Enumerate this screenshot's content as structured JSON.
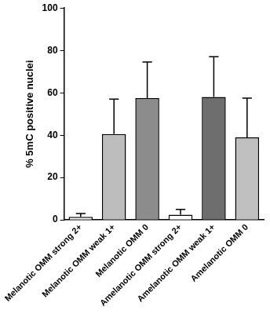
{
  "chart_data": {
    "type": "bar",
    "y_label": "% 5mC positive nuclei",
    "categories": [
      "Melanotic OMM strong 2+",
      "Melanotic OMM weak 1+",
      "Melanotic OMM 0",
      "Amelanotic OMM strong 2+",
      "Amelanotic OMM weak 1+",
      "Amelanotic OMM 0"
    ],
    "values": [
      1.5,
      40.5,
      57.5,
      2.5,
      58,
      39
    ],
    "errors": [
      1.5,
      16.5,
      17,
      2.5,
      19,
      18.5
    ],
    "colors": [
      "#ffffff",
      "#bdbdbd",
      "#8c8c8c",
      "#ffffff",
      "#6e6e6e",
      "#c0c0c0"
    ],
    "ylim": [
      0,
      100
    ],
    "yticks": [
      0,
      20,
      40,
      60,
      80,
      100
    ],
    "grid": false
  }
}
